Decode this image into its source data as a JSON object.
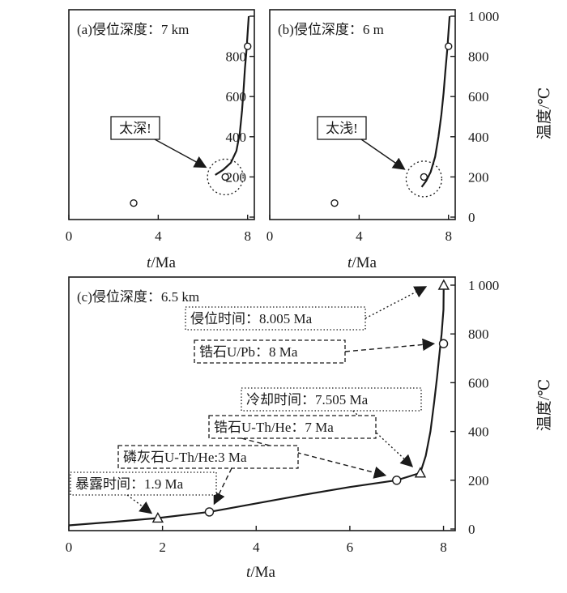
{
  "figure": {
    "y_axis_label": "温度/℃",
    "x_axis_label_t": "t",
    "x_axis_label_unit": "/Ma"
  },
  "chart_data": [
    {
      "type": "line",
      "panel_label": "(a)侵位深度：7 km",
      "callout": "太深!",
      "xlim": [
        0,
        8.3
      ],
      "ylim": [
        0,
        1000
      ],
      "x_ticks": [
        0,
        4,
        8
      ],
      "x_tick_labels": [
        "0",
        "4",
        "8"
      ],
      "y_ticks": [
        0,
        200,
        400,
        600,
        800,
        1000
      ],
      "y_tick_labels": [
        "0",
        "200",
        "400",
        "600",
        "800",
        "1 000"
      ],
      "series": [
        {
          "x": [
            6.55,
            6.9,
            7.25,
            7.5,
            7.65,
            7.75,
            7.82,
            7.88,
            7.95,
            8.05
          ],
          "y": [
            210,
            235,
            270,
            330,
            420,
            530,
            640,
            740,
            830,
            1000
          ]
        }
      ],
      "points": [
        {
          "x": 8.0,
          "y": 850,
          "marker": "circle"
        },
        {
          "x": 7.0,
          "y": 200,
          "marker": "circle"
        },
        {
          "x": 2.9,
          "y": 70,
          "marker": "circle"
        }
      ],
      "highlight": {
        "x": 7.0,
        "y": 200
      }
    },
    {
      "type": "line",
      "panel_label": "(b)侵位深度：6 m",
      "callout": "太浅!",
      "xlim": [
        0,
        8.3
      ],
      "ylim": [
        0,
        1000
      ],
      "x_ticks": [
        0,
        4,
        8
      ],
      "x_tick_labels": [
        "0",
        "4",
        "8"
      ],
      "y_ticks": [
        0,
        200,
        400,
        600,
        800,
        1000
      ],
      "y_tick_labels": [
        "0",
        "200",
        "400",
        "600",
        "800",
        "1 000"
      ],
      "series": [
        {
          "x": [
            6.8,
            7.0,
            7.2,
            7.4,
            7.55,
            7.68,
            7.78,
            7.86,
            7.94,
            8.05
          ],
          "y": [
            150,
            180,
            225,
            300,
            400,
            510,
            620,
            730,
            830,
            1000
          ]
        }
      ],
      "points": [
        {
          "x": 8.0,
          "y": 850,
          "marker": "circle"
        },
        {
          "x": 6.9,
          "y": 200,
          "marker": "circle"
        },
        {
          "x": 2.9,
          "y": 70,
          "marker": "circle"
        }
      ],
      "highlight": {
        "x": 6.9,
        "y": 190
      }
    },
    {
      "type": "line",
      "panel_label": "(c)侵位深度：6.5 km",
      "xlim": [
        0,
        8.25
      ],
      "ylim": [
        0,
        1000
      ],
      "x_ticks": [
        0,
        2,
        4,
        6,
        8
      ],
      "x_tick_labels": [
        "0",
        "2",
        "4",
        "6",
        "8"
      ],
      "y_ticks": [
        0,
        200,
        400,
        600,
        800,
        1000
      ],
      "y_tick_labels": [
        "0",
        "200",
        "400",
        "600",
        "800",
        "1 000"
      ],
      "series": [
        {
          "x": [
            0,
            1.0,
            1.9,
            3.0,
            4.0,
            5.0,
            6.0,
            7.0,
            7.505,
            7.62,
            7.72,
            7.8,
            7.86,
            7.92,
            7.96,
            8.0,
            8.005
          ],
          "y": [
            15,
            30,
            45,
            70,
            105,
            140,
            172,
            200,
            230,
            300,
            400,
            520,
            620,
            730,
            800,
            900,
            1000
          ]
        }
      ],
      "points": [
        {
          "x": 1.9,
          "y": 45,
          "marker": "triangle"
        },
        {
          "x": 3.0,
          "y": 70,
          "marker": "circle"
        },
        {
          "x": 7.0,
          "y": 200,
          "marker": "circle"
        },
        {
          "x": 7.505,
          "y": 230,
          "marker": "triangle"
        },
        {
          "x": 8.0,
          "y": 760,
          "marker": "circle"
        },
        {
          "x": 8.005,
          "y": 1000,
          "marker": "triangle"
        }
      ],
      "annotations": [
        {
          "text": "侵位时间：8.005 Ma",
          "style": "dotted"
        },
        {
          "text": "锆石U/Pb：8 Ma",
          "style": "dashed"
        },
        {
          "text": "冷却时间：7.505 Ma",
          "style": "dotted"
        },
        {
          "text": "锆石U-Th/He：7 Ma",
          "style": "dashed"
        },
        {
          "text": "磷灰石U-Th/He:3 Ma",
          "style": "dashed"
        },
        {
          "text": "暴露时间：1.9 Ma",
          "style": "dotted"
        }
      ]
    }
  ]
}
